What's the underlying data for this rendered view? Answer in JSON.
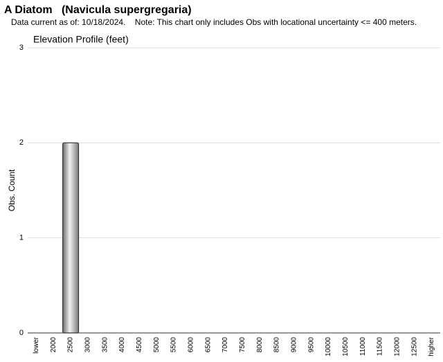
{
  "chart_data": {
    "type": "bar",
    "title": "A Diatom   (Navicula supergregaria)",
    "subtitle": "Data current as of: 10/18/2024.    Note: This chart only includes Obs with locational uncertainty <= 400 meters.",
    "chart_title": "Elevation Profile (feet)",
    "y_label": "Obs. Count",
    "categories": [
      "lower",
      "2000",
      "2500",
      "3000",
      "3500",
      "4000",
      "4500",
      "5000",
      "5500",
      "6000",
      "6500",
      "7000",
      "7500",
      "8000",
      "8500",
      "9000",
      "9500",
      "10000",
      "10500",
      "11000",
      "11500",
      "12000",
      "12500",
      "higher"
    ],
    "values": [
      0,
      0,
      2,
      0,
      0,
      0,
      0,
      0,
      0,
      0,
      0,
      0,
      0,
      0,
      0,
      0,
      0,
      0,
      0,
      0,
      0,
      0,
      0,
      0
    ],
    "color": "#a8a8a8",
    "ylim": [
      0,
      3
    ],
    "yticks": [
      0,
      1,
      2,
      3
    ],
    "grid": true
  }
}
